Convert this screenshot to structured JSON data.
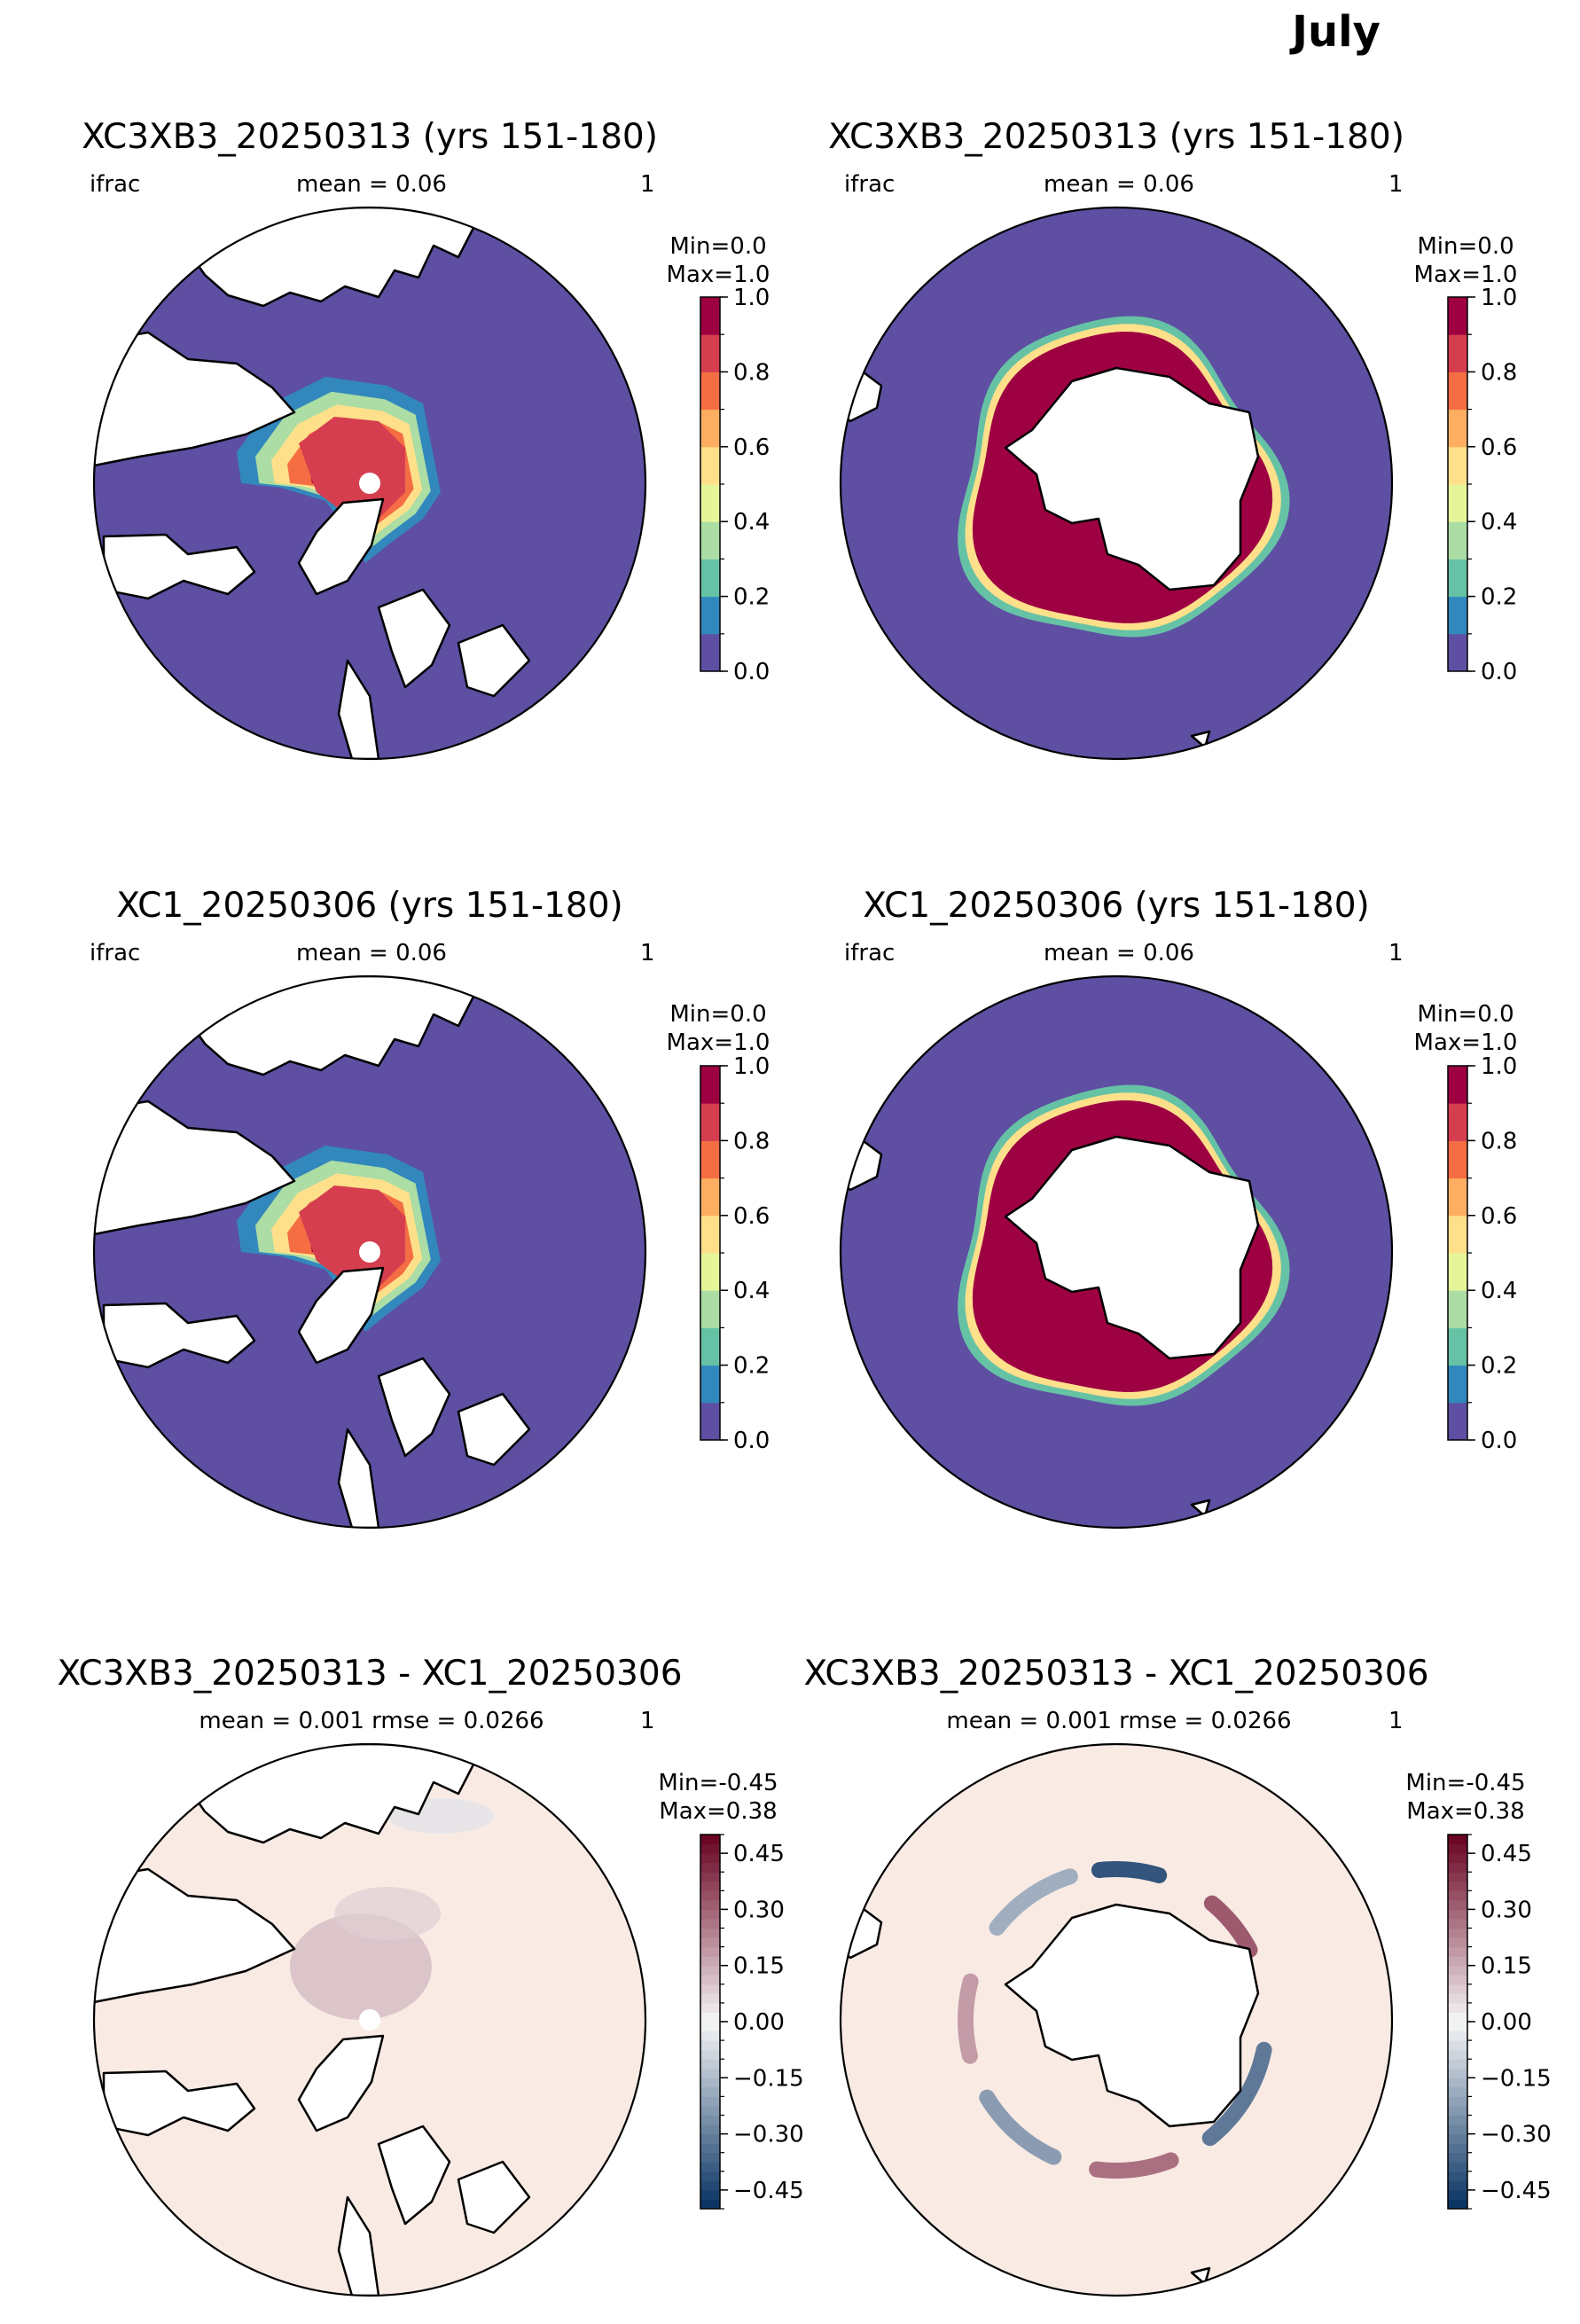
{
  "figure": {
    "suptitle": "July"
  },
  "colors": {
    "ifrac_levels": [
      "#5e4fa2",
      "#3288bd",
      "#66c2a5",
      "#abdda4",
      "#e6f598",
      "#fee08b",
      "#fdae61",
      "#f46d43",
      "#d53e4f",
      "#9e0142"
    ],
    "diff_cmap_low": "#053061",
    "diff_cmap_mid": "#f7f7f7",
    "diff_cmap_high": "#67001f",
    "diff_background": "#f9ebe3",
    "land": "#ffffff",
    "coast": "#000000"
  },
  "panels": [
    {
      "id": "nh-xc3xb3",
      "hemisphere": "north",
      "title": "XC3XB3_20250313 (yrs 151-180)",
      "var_label": "ifrac",
      "stat_label": "mean = 0.06",
      "month_label": "1",
      "min_label": "Min=0.0",
      "max_label": "Max=1.0",
      "colorbar": "ifrac"
    },
    {
      "id": "sh-xc3xb3",
      "hemisphere": "south",
      "title": "XC3XB3_20250313 (yrs 151-180)",
      "var_label": "ifrac",
      "stat_label": "mean = 0.06",
      "month_label": "1",
      "min_label": "Min=0.0",
      "max_label": "Max=1.0",
      "colorbar": "ifrac"
    },
    {
      "id": "nh-xc1",
      "hemisphere": "north",
      "title": "XC1_20250306 (yrs 151-180)",
      "var_label": "ifrac",
      "stat_label": "mean = 0.06",
      "month_label": "1",
      "min_label": "Min=0.0",
      "max_label": "Max=1.0",
      "colorbar": "ifrac"
    },
    {
      "id": "sh-xc1",
      "hemisphere": "south",
      "title": "XC1_20250306 (yrs 151-180)",
      "var_label": "ifrac",
      "stat_label": "mean = 0.06",
      "month_label": "1",
      "min_label": "Min=0.0",
      "max_label": "Max=1.0",
      "colorbar": "ifrac"
    },
    {
      "id": "nh-diff",
      "hemisphere": "north",
      "title": "XC3XB3_20250313 - XC1_20250306",
      "var_label": "",
      "stat_label": "mean = 0.001 rmse = 0.0266",
      "month_label": "1",
      "min_label": "Min=-0.45",
      "max_label": "Max=0.38",
      "colorbar": "diff"
    },
    {
      "id": "sh-diff",
      "hemisphere": "south",
      "title": "XC3XB3_20250313 - XC1_20250306",
      "var_label": "",
      "stat_label": "mean = 0.001 rmse = 0.0266",
      "month_label": "1",
      "min_label": "Min=-0.45",
      "max_label": "Max=0.38",
      "colorbar": "diff"
    }
  ],
  "chart_data": [
    {
      "type": "heatmap",
      "title": "XC3XB3_20250313 (yrs 151-180)",
      "region": "Arctic (north polar stereographic)",
      "variable": "ifrac",
      "mean": 0.06,
      "min": 0.0,
      "max": 1.0,
      "colorbar": {
        "ticks": [
          0.0,
          0.2,
          0.4,
          0.6,
          0.8,
          1.0
        ],
        "ticklabels": [
          "0.0",
          "0.2",
          "0.4",
          "0.6",
          "0.8",
          "1.0"
        ],
        "levels": [
          0,
          0.1,
          0.2,
          0.3,
          0.4,
          0.5,
          0.6,
          0.7,
          0.8,
          0.9,
          1.0
        ]
      }
    },
    {
      "type": "heatmap",
      "title": "XC3XB3_20250313 (yrs 151-180)",
      "region": "Antarctic (south polar stereographic)",
      "variable": "ifrac",
      "mean": 0.06,
      "min": 0.0,
      "max": 1.0,
      "colorbar": {
        "ticks": [
          0.0,
          0.2,
          0.4,
          0.6,
          0.8,
          1.0
        ],
        "ticklabels": [
          "0.0",
          "0.2",
          "0.4",
          "0.6",
          "0.8",
          "1.0"
        ],
        "levels": [
          0,
          0.1,
          0.2,
          0.3,
          0.4,
          0.5,
          0.6,
          0.7,
          0.8,
          0.9,
          1.0
        ]
      }
    },
    {
      "type": "heatmap",
      "title": "XC1_20250306 (yrs 151-180)",
      "region": "Arctic (north polar stereographic)",
      "variable": "ifrac",
      "mean": 0.06,
      "min": 0.0,
      "max": 1.0,
      "colorbar": {
        "ticks": [
          0.0,
          0.2,
          0.4,
          0.6,
          0.8,
          1.0
        ],
        "ticklabels": [
          "0.0",
          "0.2",
          "0.4",
          "0.6",
          "0.8",
          "1.0"
        ],
        "levels": [
          0,
          0.1,
          0.2,
          0.3,
          0.4,
          0.5,
          0.6,
          0.7,
          0.8,
          0.9,
          1.0
        ]
      }
    },
    {
      "type": "heatmap",
      "title": "XC1_20250306 (yrs 151-180)",
      "region": "Antarctic (south polar stereographic)",
      "variable": "ifrac",
      "mean": 0.06,
      "min": 0.0,
      "max": 1.0,
      "colorbar": {
        "ticks": [
          0.0,
          0.2,
          0.4,
          0.6,
          0.8,
          1.0
        ],
        "ticklabels": [
          "0.0",
          "0.2",
          "0.4",
          "0.6",
          "0.8",
          "1.0"
        ],
        "levels": [
          0,
          0.1,
          0.2,
          0.3,
          0.4,
          0.5,
          0.6,
          0.7,
          0.8,
          0.9,
          1.0
        ]
      }
    },
    {
      "type": "heatmap",
      "title": "XC3XB3_20250313 - XC1_20250306",
      "region": "Arctic (north polar stereographic)",
      "variable": "ifrac difference",
      "mean": 0.001,
      "rmse": 0.0266,
      "min": -0.45,
      "max": 0.38,
      "colorbar": {
        "ticks": [
          -0.45,
          -0.3,
          -0.15,
          0.0,
          0.15,
          0.3,
          0.45
        ],
        "ticklabels": [
          "−0.45",
          "−0.30",
          "−0.15",
          "0.00",
          "0.15",
          "0.30",
          "0.45"
        ],
        "range": [
          -0.5,
          0.5
        ]
      }
    },
    {
      "type": "heatmap",
      "title": "XC3XB3_20250313 - XC1_20250306",
      "region": "Antarctic (south polar stereographic)",
      "variable": "ifrac difference",
      "mean": 0.001,
      "rmse": 0.0266,
      "min": -0.45,
      "max": 0.38,
      "colorbar": {
        "ticks": [
          -0.45,
          -0.3,
          -0.15,
          0.0,
          0.15,
          0.3,
          0.45
        ],
        "ticklabels": [
          "−0.45",
          "−0.30",
          "−0.15",
          "0.00",
          "0.15",
          "0.30",
          "0.45"
        ],
        "range": [
          -0.5,
          0.5
        ]
      }
    }
  ]
}
